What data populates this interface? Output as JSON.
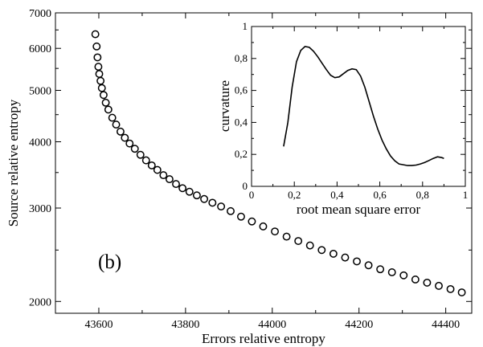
{
  "chart_data": [
    {
      "type": "scatter",
      "panel_label": "(b)",
      "xlabel": "Errors relative entropy",
      "ylabel": "Source relative entropy",
      "yscale": "log",
      "xlim": [
        43500,
        44460
      ],
      "ylim": [
        1900,
        7000
      ],
      "xticks": [
        43600,
        43800,
        44000,
        44200,
        44400
      ],
      "xtick_labels": [
        "43600",
        "43800",
        "44000",
        "44200",
        "44400"
      ],
      "yticks": [
        2000,
        3000,
        4000,
        5000,
        6000,
        7000
      ],
      "ytick_labels": [
        "2000",
        "3000",
        "4000",
        "5000",
        "6000",
        "7000"
      ],
      "y_minor_ticks": [
        2500,
        3500,
        4500,
        5500,
        6500
      ],
      "marker": "open-circle",
      "grid": false,
      "series": [
        {
          "x": [
            43592,
            43595,
            43597,
            43599,
            43601,
            43604,
            43607,
            43611,
            43616,
            43622,
            43631,
            43640,
            43650,
            43660,
            43671,
            43683,
            43696,
            43709,
            43722,
            43735,
            43749,
            43763,
            43778,
            43793,
            43809,
            43826,
            43843,
            43862,
            43882,
            43904,
            43928,
            43953,
            43979,
            44006,
            44033,
            44060,
            44087,
            44114,
            44141,
            44168,
            44195,
            44222,
            44249,
            44276,
            44303,
            44330,
            44357,
            44384,
            44411,
            44437
          ],
          "y": [
            6380,
            6050,
            5770,
            5540,
            5370,
            5210,
            5050,
            4900,
            4740,
            4600,
            4440,
            4310,
            4180,
            4070,
            3970,
            3880,
            3780,
            3690,
            3610,
            3540,
            3460,
            3400,
            3330,
            3270,
            3220,
            3170,
            3120,
            3070,
            3020,
            2960,
            2890,
            2830,
            2770,
            2710,
            2650,
            2600,
            2550,
            2500,
            2460,
            2420,
            2380,
            2340,
            2300,
            2270,
            2240,
            2200,
            2170,
            2140,
            2110,
            2080
          ]
        }
      ]
    },
    {
      "type": "line",
      "xlabel": "root mean square error",
      "ylabel": "curvature",
      "xlim": [
        0,
        1
      ],
      "ylim": [
        0,
        1
      ],
      "xticks": [
        0,
        0.2,
        0.4,
        0.6,
        0.8,
        1
      ],
      "xtick_labels": [
        "0",
        "0,2",
        "0,4",
        "0,6",
        "0,8",
        "1"
      ],
      "yticks": [
        0,
        0.2,
        0.4,
        0.6,
        0.8,
        1
      ],
      "ytick_labels": [
        "0",
        "0,2",
        "0,4",
        "0,6",
        "0,8",
        "1"
      ],
      "grid": false,
      "series": [
        {
          "x": [
            0.15,
            0.17,
            0.19,
            0.21,
            0.23,
            0.25,
            0.27,
            0.29,
            0.31,
            0.33,
            0.35,
            0.37,
            0.39,
            0.41,
            0.43,
            0.45,
            0.47,
            0.49,
            0.51,
            0.53,
            0.55,
            0.57,
            0.59,
            0.61,
            0.63,
            0.65,
            0.67,
            0.69,
            0.71,
            0.73,
            0.75,
            0.77,
            0.79,
            0.81,
            0.83,
            0.85,
            0.87,
            0.89,
            0.9
          ],
          "y": [
            0.25,
            0.4,
            0.62,
            0.78,
            0.85,
            0.875,
            0.87,
            0.845,
            0.81,
            0.77,
            0.73,
            0.695,
            0.68,
            0.685,
            0.705,
            0.725,
            0.735,
            0.73,
            0.69,
            0.62,
            0.53,
            0.44,
            0.36,
            0.29,
            0.235,
            0.19,
            0.16,
            0.14,
            0.135,
            0.13,
            0.13,
            0.133,
            0.14,
            0.15,
            0.162,
            0.175,
            0.185,
            0.18,
            0.175
          ]
        }
      ]
    }
  ]
}
